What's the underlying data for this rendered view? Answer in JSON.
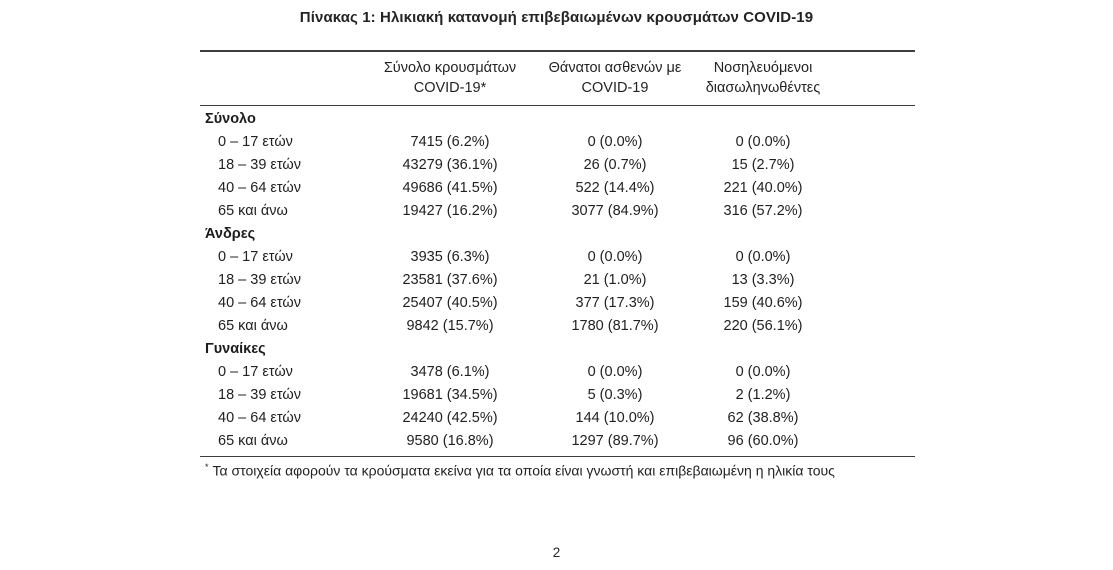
{
  "page": {
    "title": "Πίνακας 1: Ηλικιακή κατανομή επιβεβαιωμένων κρουσμάτων COVID-19",
    "page_number": "2"
  },
  "colors": {
    "text": "#212121",
    "rule": "#3d3d3d",
    "background": "#ffffff"
  },
  "table": {
    "columns": [
      {
        "line1": "Σύνολο κρουσμάτων",
        "line2": "COVID-19*"
      },
      {
        "line1": "Θάνατοι ασθενών με",
        "line2": "COVID-19"
      },
      {
        "line1": "Νοσηλευόμενοι",
        "line2": "διασωληνωθέντες"
      }
    ],
    "sections": [
      {
        "name": "Σύνολο",
        "rows": [
          {
            "label": "0 – 17 ετών",
            "values": [
              "7415 (6.2%)",
              "0 (0.0%)",
              "0 (0.0%)"
            ]
          },
          {
            "label": "18 – 39 ετών",
            "values": [
              "43279 (36.1%)",
              "26 (0.7%)",
              "15 (2.7%)"
            ]
          },
          {
            "label": "40 – 64 ετών",
            "values": [
              "49686 (41.5%)",
              "522 (14.4%)",
              "221 (40.0%)"
            ]
          },
          {
            "label": "65 και άνω",
            "values": [
              "19427 (16.2%)",
              "3077 (84.9%)",
              "316 (57.2%)"
            ]
          }
        ]
      },
      {
        "name": "Άνδρες",
        "rows": [
          {
            "label": "0 – 17 ετών",
            "values": [
              "3935 (6.3%)",
              "0 (0.0%)",
              "0 (0.0%)"
            ]
          },
          {
            "label": "18 – 39 ετών",
            "values": [
              "23581 (37.6%)",
              "21 (1.0%)",
              "13 (3.3%)"
            ]
          },
          {
            "label": "40 – 64 ετών",
            "values": [
              "25407 (40.5%)",
              "377 (17.3%)",
              "159 (40.6%)"
            ]
          },
          {
            "label": "65 και άνω",
            "values": [
              "9842 (15.7%)",
              "1780 (81.7%)",
              "220 (56.1%)"
            ]
          }
        ]
      },
      {
        "name": "Γυναίκες",
        "rows": [
          {
            "label": "0 – 17 ετών",
            "values": [
              "3478 (6.1%)",
              "0 (0.0%)",
              "0 (0.0%)"
            ]
          },
          {
            "label": "18 – 39 ετών",
            "values": [
              "19681 (34.5%)",
              "5 (0.3%)",
              "2 (1.2%)"
            ]
          },
          {
            "label": "40 – 64 ετών",
            "values": [
              "24240 (42.5%)",
              "144 (10.0%)",
              "62 (38.8%)"
            ]
          },
          {
            "label": "65 και άνω",
            "values": [
              "9580 (16.8%)",
              "1297 (89.7%)",
              "96 (60.0%)"
            ]
          }
        ]
      }
    ],
    "footnote": {
      "marker": "*",
      "text": "Τα στοιχεία αφορούν τα κρούσματα εκείνα για τα οποία είναι γνωστή και επιβεβαιωμένη η ηλικία τους"
    }
  }
}
